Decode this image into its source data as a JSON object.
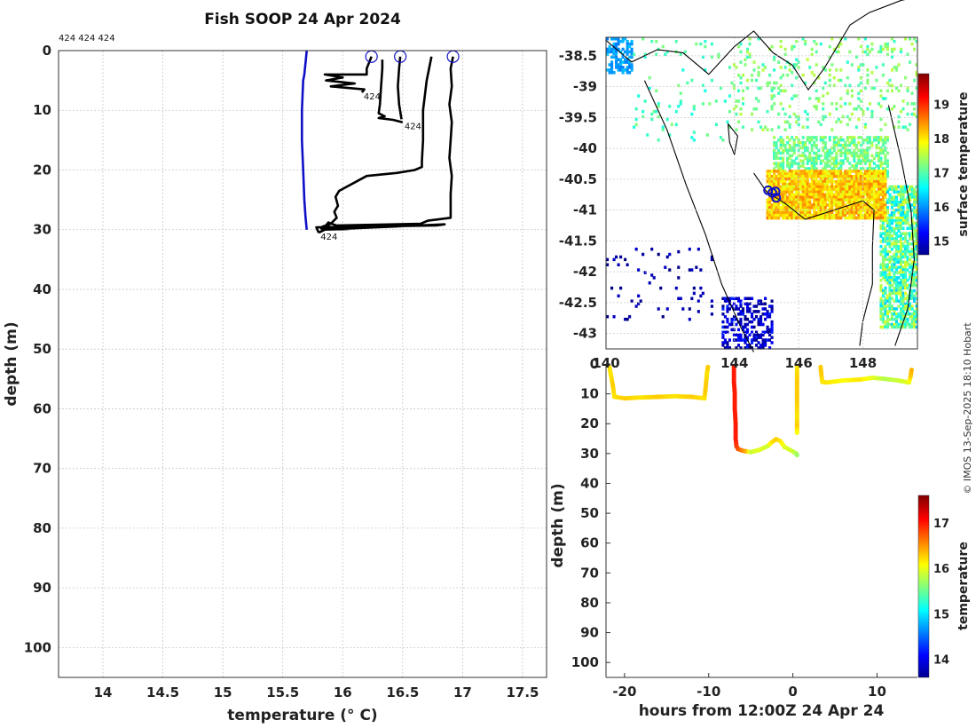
{
  "figure": {
    "title": "Fish SOOP 24 Apr 2024",
    "ids_text": "424 424 424",
    "credit": "© IMOS 13-Sep-2025 18:10 Hobart"
  },
  "chart_data": [
    {
      "type": "line",
      "title": "Fish SOOP 24 Apr 2024",
      "xlabel": "temperature (° C)",
      "ylabel": "depth (m)",
      "xlim": [
        13.63,
        17.7
      ],
      "ylim": [
        105,
        0
      ],
      "y_inverted": true,
      "grid": true,
      "xticks": [
        14,
        14.5,
        15,
        15.5,
        16,
        16.5,
        17,
        17.5
      ],
      "yticks": [
        0,
        10,
        20,
        30,
        40,
        50,
        60,
        70,
        80,
        90,
        100
      ],
      "xticklabels": [
        "14",
        "14.5",
        "15",
        "15.5",
        "16",
        "16.5",
        "17",
        "17.5"
      ],
      "yticklabels": [
        "0",
        "10",
        "20",
        "30",
        "40",
        "50",
        "60",
        "70",
        "80",
        "90",
        "100"
      ],
      "start_markers": [
        {
          "x": 16.24,
          "y": 1
        },
        {
          "x": 16.48,
          "y": 1
        },
        {
          "x": 16.92,
          "y": 1
        }
      ],
      "series": [
        {
          "color": "#1010c8",
          "x": [
            15.7,
            15.69,
            15.68,
            15.67,
            15.66,
            15.66,
            15.67,
            15.68,
            15.69,
            15.7
          ],
          "y": [
            0,
            2,
            4,
            5,
            10,
            15,
            20,
            25,
            28,
            30
          ]
        },
        {
          "color": "#000000",
          "x": [
            16.24,
            16.2,
            16.2,
            15.85,
            16.0,
            15.86,
            16.1,
            15.9,
            16.18,
            16.16
          ],
          "y": [
            1,
            3,
            4,
            4,
            4.5,
            5,
            5.5,
            6,
            6.5,
            7
          ],
          "end_label": {
            "text": "424",
            "x": 16.16,
            "y": 7
          }
        },
        {
          "color": "#000000",
          "x": [
            16.33,
            16.33,
            16.32,
            16.31,
            16.3,
            16.35,
            16.3,
            16.42,
            16.5
          ],
          "y": [
            1.5,
            3,
            6,
            9,
            10.5,
            11,
            11.3,
            11.6,
            12
          ],
          "end_label": {
            "text": "424",
            "x": 16.5,
            "y": 12
          }
        },
        {
          "color": "#000000",
          "x": [
            16.48,
            16.47,
            16.46,
            16.47,
            16.49
          ],
          "y": [
            1,
            3,
            6,
            9,
            11.5
          ]
        },
        {
          "color": "#000000",
          "x": [
            16.92,
            16.9,
            16.91,
            16.89,
            16.91,
            16.9,
            16.89,
            16.91,
            16.9,
            16.9,
            16.71,
            16.65,
            16.2,
            15.95,
            15.92,
            15.88,
            15.86,
            15.9,
            15.82,
            16.05,
            15.83,
            16.85,
            16.78,
            15.78,
            15.8
          ],
          "y": [
            1,
            3,
            6,
            9,
            12,
            15,
            18,
            21,
            24,
            28,
            28.5,
            29,
            29.2,
            29.3,
            29.1,
            28.8,
            29.3,
            29.6,
            29.8,
            29.9,
            30,
            29.1,
            29.3,
            29.6,
            30.5
          ]
        },
        {
          "color": "#000000",
          "x": [
            16.74,
            16.7,
            16.67,
            16.67,
            16.66,
            16.66,
            16.6,
            16.45,
            16.2,
            15.97,
            15.94,
            15.96,
            15.93,
            15.95,
            15.9,
            15.83,
            15.85,
            15.8
          ],
          "y": [
            1,
            5,
            10,
            15,
            18.5,
            19.5,
            20,
            20.5,
            21,
            23.5,
            24.5,
            26,
            27,
            28,
            29,
            29.5,
            30,
            30.5
          ],
          "end_label": {
            "text": "424",
            "x": 15.8,
            "y": 30.5
          }
        }
      ]
    },
    {
      "type": "heatmap",
      "subtype": "map",
      "ylabel": "",
      "colorbar_label": "surface temperature",
      "xlim": [
        140,
        149.7
      ],
      "ylim": [
        -43.25,
        -38.2
      ],
      "xticks": [
        140,
        144,
        146,
        148
      ],
      "yticks": [
        -38.5,
        -39,
        -39.5,
        -40,
        -40.5,
        -41,
        -41.5,
        -42,
        -42.5,
        -43
      ],
      "xticklabels": [
        "140",
        "144",
        "146",
        "148"
      ],
      "yticklabels": [
        "-38.5",
        "-39",
        "-39.5",
        "-40",
        "-40.5",
        "-41",
        "-41.5",
        "-42",
        "-42.5",
        "-43"
      ],
      "colorbar_ticks": [
        15,
        16,
        17,
        18,
        19
      ],
      "colorbar_ticklabels": [
        "15",
        "16",
        "17",
        "18",
        "19"
      ],
      "colorbar_range": [
        14.6,
        19.9
      ],
      "track_markers": [
        {
          "lon": 145.05,
          "lat": -40.68
        },
        {
          "lon": 145.18,
          "lat": -40.72
        },
        {
          "lon": 145.28,
          "lat": -40.7
        },
        {
          "lon": 145.3,
          "lat": -40.8
        }
      ]
    },
    {
      "type": "scatter",
      "xlabel": "hours from 12:00Z 24 Apr 24",
      "ylabel": "depth (m)",
      "colorbar_label": "temperature",
      "xlim": [
        -22.2,
        14.8
      ],
      "ylim": [
        105,
        0
      ],
      "y_inverted": true,
      "xticks": [
        -20,
        -10,
        0,
        10
      ],
      "yticks": [
        0,
        10,
        20,
        30,
        40,
        50,
        60,
        70,
        80,
        90,
        100
      ],
      "xticklabels": [
        "-20",
        "-10",
        "0",
        "10"
      ],
      "yticklabels": [
        "0",
        "10",
        "20",
        "30",
        "40",
        "50",
        "60",
        "70",
        "80",
        "90",
        "100"
      ],
      "colorbar_ticks": [
        14,
        15,
        16,
        17
      ],
      "colorbar_ticklabels": [
        "14",
        "15",
        "16",
        "17"
      ],
      "colorbar_range": [
        13.6,
        17.6
      ],
      "segments": [
        {
          "t": [
            -21.8,
            -21.6,
            -21.4,
            -21.2,
            -20,
            -18,
            -16,
            -14,
            -12,
            -10.5,
            -10.4,
            -10.3,
            -10.2,
            -10.1
          ],
          "depth": [
            1,
            4,
            7,
            11,
            11.5,
            11.2,
            11,
            10.8,
            11,
            11.5,
            9,
            6,
            3,
            1
          ],
          "temp": [
            16.2,
            16.2,
            16.3,
            16.2,
            16.3,
            16.2,
            16.3,
            16.2,
            16.3,
            16.2,
            16.3,
            16.3,
            16.2,
            16.3
          ]
        },
        {
          "t": [
            -7,
            -7,
            -6.9,
            -6.9,
            -6.8,
            -6.8,
            -6.7,
            -6.5,
            -6,
            -5.5,
            -5,
            -4,
            -3,
            -2.5,
            -2,
            -1.5,
            -1,
            0,
            0.4,
            0.5
          ],
          "depth": [
            1,
            6,
            10,
            15,
            20,
            25,
            27.5,
            28.5,
            29,
            29.3,
            29.5,
            28.8,
            27.5,
            26.2,
            25.2,
            25.8,
            27.8,
            29.3,
            30,
            30.5
          ],
          "temp": [
            17.0,
            17.0,
            17.0,
            17.0,
            17.0,
            17.0,
            16.9,
            16.8,
            16.6,
            16.4,
            15.9,
            16.0,
            15.9,
            16.2,
            16.3,
            16.2,
            16.0,
            15.9,
            15.8,
            15.7
          ]
        },
        {
          "t": [
            0.5,
            0.5,
            0.5,
            0.5,
            0.5,
            0.5
          ],
          "depth": [
            1,
            6,
            12,
            18,
            21,
            23
          ],
          "temp": [
            16.2,
            16.3,
            16.3,
            16.2,
            16.3,
            16.1
          ]
        },
        {
          "t": [
            3.3,
            3.4,
            3.5,
            4,
            6,
            8,
            9.5,
            11,
            12.5,
            13.8,
            14,
            14.1
          ],
          "depth": [
            1,
            4,
            6,
            6.2,
            5.5,
            5.2,
            4.6,
            5,
            5.5,
            6.2,
            4,
            2
          ],
          "temp": [
            16.3,
            16.3,
            16.2,
            16.2,
            16.1,
            16.2,
            16.0,
            15.8,
            15.9,
            16.0,
            16.3,
            16.4
          ]
        }
      ]
    }
  ]
}
